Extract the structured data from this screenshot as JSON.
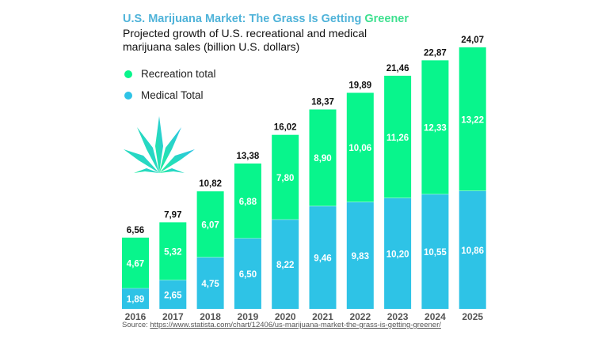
{
  "title": {
    "main": "U.S. Marijuana Market: The Grass Is Getting ",
    "accent": "Greener"
  },
  "subtitle": "Projected growth of U.S. recreational and medical marijuana sales (billion U.S. dollars)",
  "legend": [
    {
      "label": "Recreation total",
      "color": "#08f58c"
    },
    {
      "label": "Medical Total",
      "color": "#2ec3e6"
    }
  ],
  "source": {
    "prefix": "Source: ",
    "link": "https://www.statista.com/chart/12406/us-marijuana-market-the-grass-is-getting-greener/"
  },
  "logo_icon": "cannabis-leaf-icon",
  "chart_data": {
    "type": "bar",
    "stacked": true,
    "title": "U.S. Marijuana Market: The Grass Is Getting Greener",
    "subtitle": "Projected growth of U.S. recreational and medical marijuana sales (billion U.S. dollars)",
    "xlabel": "",
    "ylabel": "billion U.S. dollars",
    "categories": [
      "2016",
      "2017",
      "2018",
      "2019",
      "2020",
      "2021",
      "2022",
      "2023",
      "2024",
      "2025"
    ],
    "series": [
      {
        "name": "Medical Total",
        "color": "#2ec3e6",
        "values": [
          1.89,
          2.65,
          4.75,
          6.5,
          8.22,
          9.46,
          9.83,
          10.2,
          10.55,
          10.86
        ],
        "labels": [
          "1,89",
          "2,65",
          "4,75",
          "6,50",
          "8,22",
          "9,46",
          "9,83",
          "10,20",
          "10,55",
          "10,86"
        ]
      },
      {
        "name": "Recreation total",
        "color": "#08f58c",
        "values": [
          4.67,
          5.32,
          6.07,
          6.88,
          7.8,
          8.9,
          10.06,
          11.26,
          12.33,
          13.22
        ],
        "labels": [
          "4,67",
          "5,32",
          "6,07",
          "6,88",
          "7,80",
          "8,90",
          "10,06",
          "11,26",
          "12,33",
          "13,22"
        ]
      }
    ],
    "totals": [
      6.56,
      7.97,
      10.82,
      13.38,
      16.02,
      18.37,
      19.89,
      21.46,
      22.87,
      24.07
    ],
    "total_labels": [
      "6,56",
      "7,97",
      "10,82",
      "13,38",
      "16,02",
      "18,37",
      "19,89",
      "21,46",
      "22,87",
      "24,07"
    ],
    "ylim": [
      0,
      24.07
    ],
    "grid": false,
    "y_axis_visible": false,
    "legend_position": "top-left"
  }
}
